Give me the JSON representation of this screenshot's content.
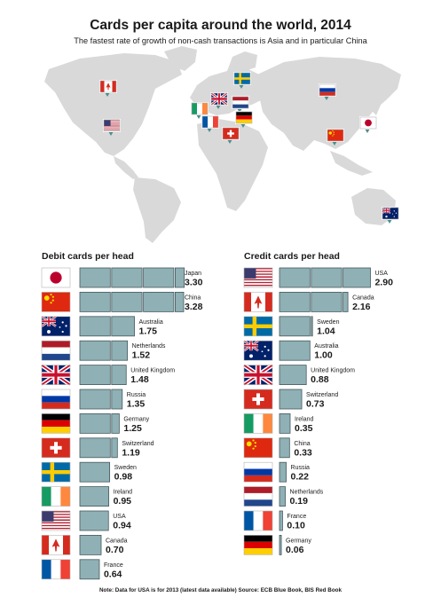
{
  "title": "Cards per capita around the world, 2014",
  "subtitle": "The fastest rate of growth of non-cash transactions is Asia and in particular China",
  "note": "Note: Data for USA is for 2013 (latest data available)   Source: ECB Blue Book, BIS Red Book",
  "colors": {
    "bar_fill": "#8fb0b5",
    "bar_stroke": "#445a5e",
    "map": "#d9d9d9",
    "pin": "#4a8d8c"
  },
  "map_pins": [
    "canada-flag",
    "usa-flag",
    "sweden-flag",
    "uk-flag",
    "netherlands-flag",
    "ireland-flag",
    "germany-flag",
    "france-flag",
    "switzerland-flag",
    "russia-flag",
    "japan-flag",
    "china-flag",
    "australia-flag"
  ],
  "chart_data": [
    {
      "type": "bar",
      "title": "Debit cards per head",
      "categories": [
        "Japan",
        "China",
        "Australia",
        "Netherlands",
        "United Kingdom",
        "Russia",
        "Germany",
        "Switzerland",
        "Sweden",
        "Ireland",
        "USA",
        "Canada",
        "France"
      ],
      "values": [
        3.3,
        3.28,
        1.75,
        1.52,
        1.48,
        1.35,
        1.25,
        1.19,
        0.98,
        0.95,
        0.94,
        0.7,
        0.64
      ],
      "value_labels": [
        "3.30",
        "3.28",
        "1.75",
        "1.52",
        "1.48",
        "1.35",
        "1.25",
        "1.19",
        "0.98",
        "0.95",
        "0.94",
        "0.70",
        "0.64"
      ],
      "flags": [
        "japan",
        "china",
        "australia",
        "netherlands",
        "uk",
        "russia",
        "germany",
        "switzerland",
        "sweden",
        "ireland",
        "usa",
        "canada",
        "france"
      ],
      "bar_unit": "one card segment per card"
    },
    {
      "type": "bar",
      "title": "Credit cards per head",
      "categories": [
        "USA",
        "Canada",
        "Sweden",
        "Australia",
        "United Kingdom",
        "Switzerland",
        "Ireland",
        "China",
        "Russia",
        "Netherlands",
        "France",
        "Germany"
      ],
      "values": [
        2.9,
        2.16,
        1.04,
        1.0,
        0.88,
        0.73,
        0.35,
        0.33,
        0.22,
        0.19,
        0.1,
        0.06
      ],
      "value_labels": [
        "2.90",
        "2.16",
        "1.04",
        "1.00",
        "0.88",
        "0.73",
        "0.35",
        "0.33",
        "0.22",
        "0.19",
        "0.10",
        "0.06"
      ],
      "flags": [
        "usa",
        "canada",
        "sweden",
        "australia",
        "uk",
        "switzerland",
        "ireland",
        "china",
        "russia",
        "netherlands",
        "france",
        "germany"
      ],
      "bar_unit": "one card segment per card"
    }
  ]
}
